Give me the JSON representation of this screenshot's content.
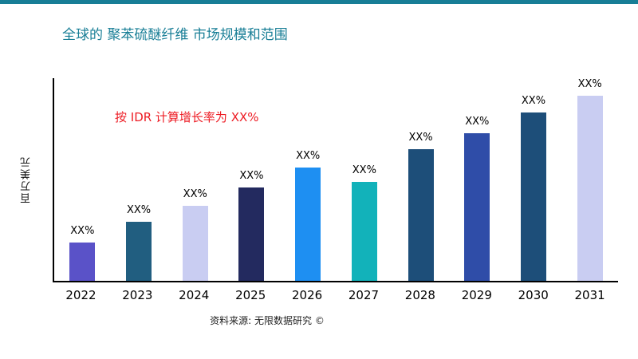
{
  "page": {
    "background": "#FFFFFF",
    "accent_color": "#187E96"
  },
  "header": {
    "title": "全球的 聚苯硫醚纤维 市场规模和范围",
    "title_color": "#187E96"
  },
  "annotation": {
    "text": "按 IDR 计算增长率为 XX%",
    "color": "#ED1C24"
  },
  "footer": {
    "source": "资料来源: 无限数据研究 ©"
  },
  "chart_data": {
    "type": "bar",
    "title": "全球的 聚苯硫醚纤维 市场规模和范围",
    "xlabel": "",
    "ylabel": "百万美元",
    "categories": [
      "2022",
      "2023",
      "2024",
      "2025",
      "2026",
      "2027",
      "2028",
      "2029",
      "2030",
      "2031"
    ],
    "values": [
      19,
      29,
      37,
      46,
      56,
      49,
      65,
      73,
      83,
      92
    ],
    "bar_labels": [
      "XX%",
      "XX%",
      "XX%",
      "XX%",
      "XX%",
      "XX%",
      "XX%",
      "XX%",
      "XX%",
      "XX%"
    ],
    "bar_colors": [
      "#5A52C8",
      "#215E80",
      "#C9CDF2",
      "#232A5F",
      "#1E8FF2",
      "#12B2BA",
      "#1D4E79",
      "#2F4DA8",
      "#1D4E79",
      "#C9CDF2"
    ],
    "annotation": "按 IDR 计算增长率为 XX%",
    "ylim": [
      0,
      100
    ],
    "grid": false,
    "legend": "none"
  }
}
